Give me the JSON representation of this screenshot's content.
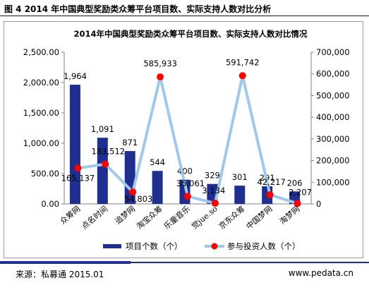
{
  "figure_title": "图 4 2014 年中国典型奖励类众筹平台项目数、实际支持人数对比分析",
  "source": "来源：私募通 2015.01",
  "website": "www.pedata.cn",
  "colors": {
    "bar": "#1f2f8f",
    "line": "#9fc8ec",
    "marker": "#ff0000",
    "rule": "#1f2f8f"
  },
  "chart_data": {
    "type": "bar",
    "title": "2014年中国典型奖励类众筹平台项目数、实际支持人数对比情况",
    "categories": [
      "众筹网",
      "点名时间",
      "追梦网",
      "淘宝众筹",
      "乐童音乐",
      "觉jue.so",
      "京东众筹",
      "中国梦网",
      "淘梦网"
    ],
    "y_left": {
      "ticks": [
        "0.00",
        "500.00",
        "1,000.00",
        "1,500.00",
        "2,000.00",
        "2,500.00"
      ],
      "ylim": [
        0,
        2500
      ]
    },
    "y_right": {
      "ticks": [
        "0",
        "100,000",
        "200,000",
        "300,000",
        "400,000",
        "500,000",
        "600,000",
        "700,000"
      ],
      "ylim": [
        0,
        700000
      ]
    },
    "legend_position": "bottom",
    "series": [
      {
        "name": "项目个数（个）",
        "type": "bar",
        "axis": "left",
        "values": [
          1964,
          1091,
          871,
          544,
          400,
          329,
          301,
          291,
          206
        ],
        "labels": [
          "1,964",
          "1,091",
          "871",
          "544",
          "400",
          "329",
          "301",
          "291",
          "206"
        ]
      },
      {
        "name": "参与投资人数（个）",
        "type": "line",
        "axis": "right",
        "values": [
          165137,
          183512,
          54803,
          585933,
          35061,
          3134,
          591742,
          42217,
          2207
        ],
        "labels": [
          "165,137",
          "183,512",
          "54,803",
          "585,933",
          "35,061",
          "3,134",
          "591,742",
          "42,217",
          "2,207"
        ]
      }
    ]
  }
}
